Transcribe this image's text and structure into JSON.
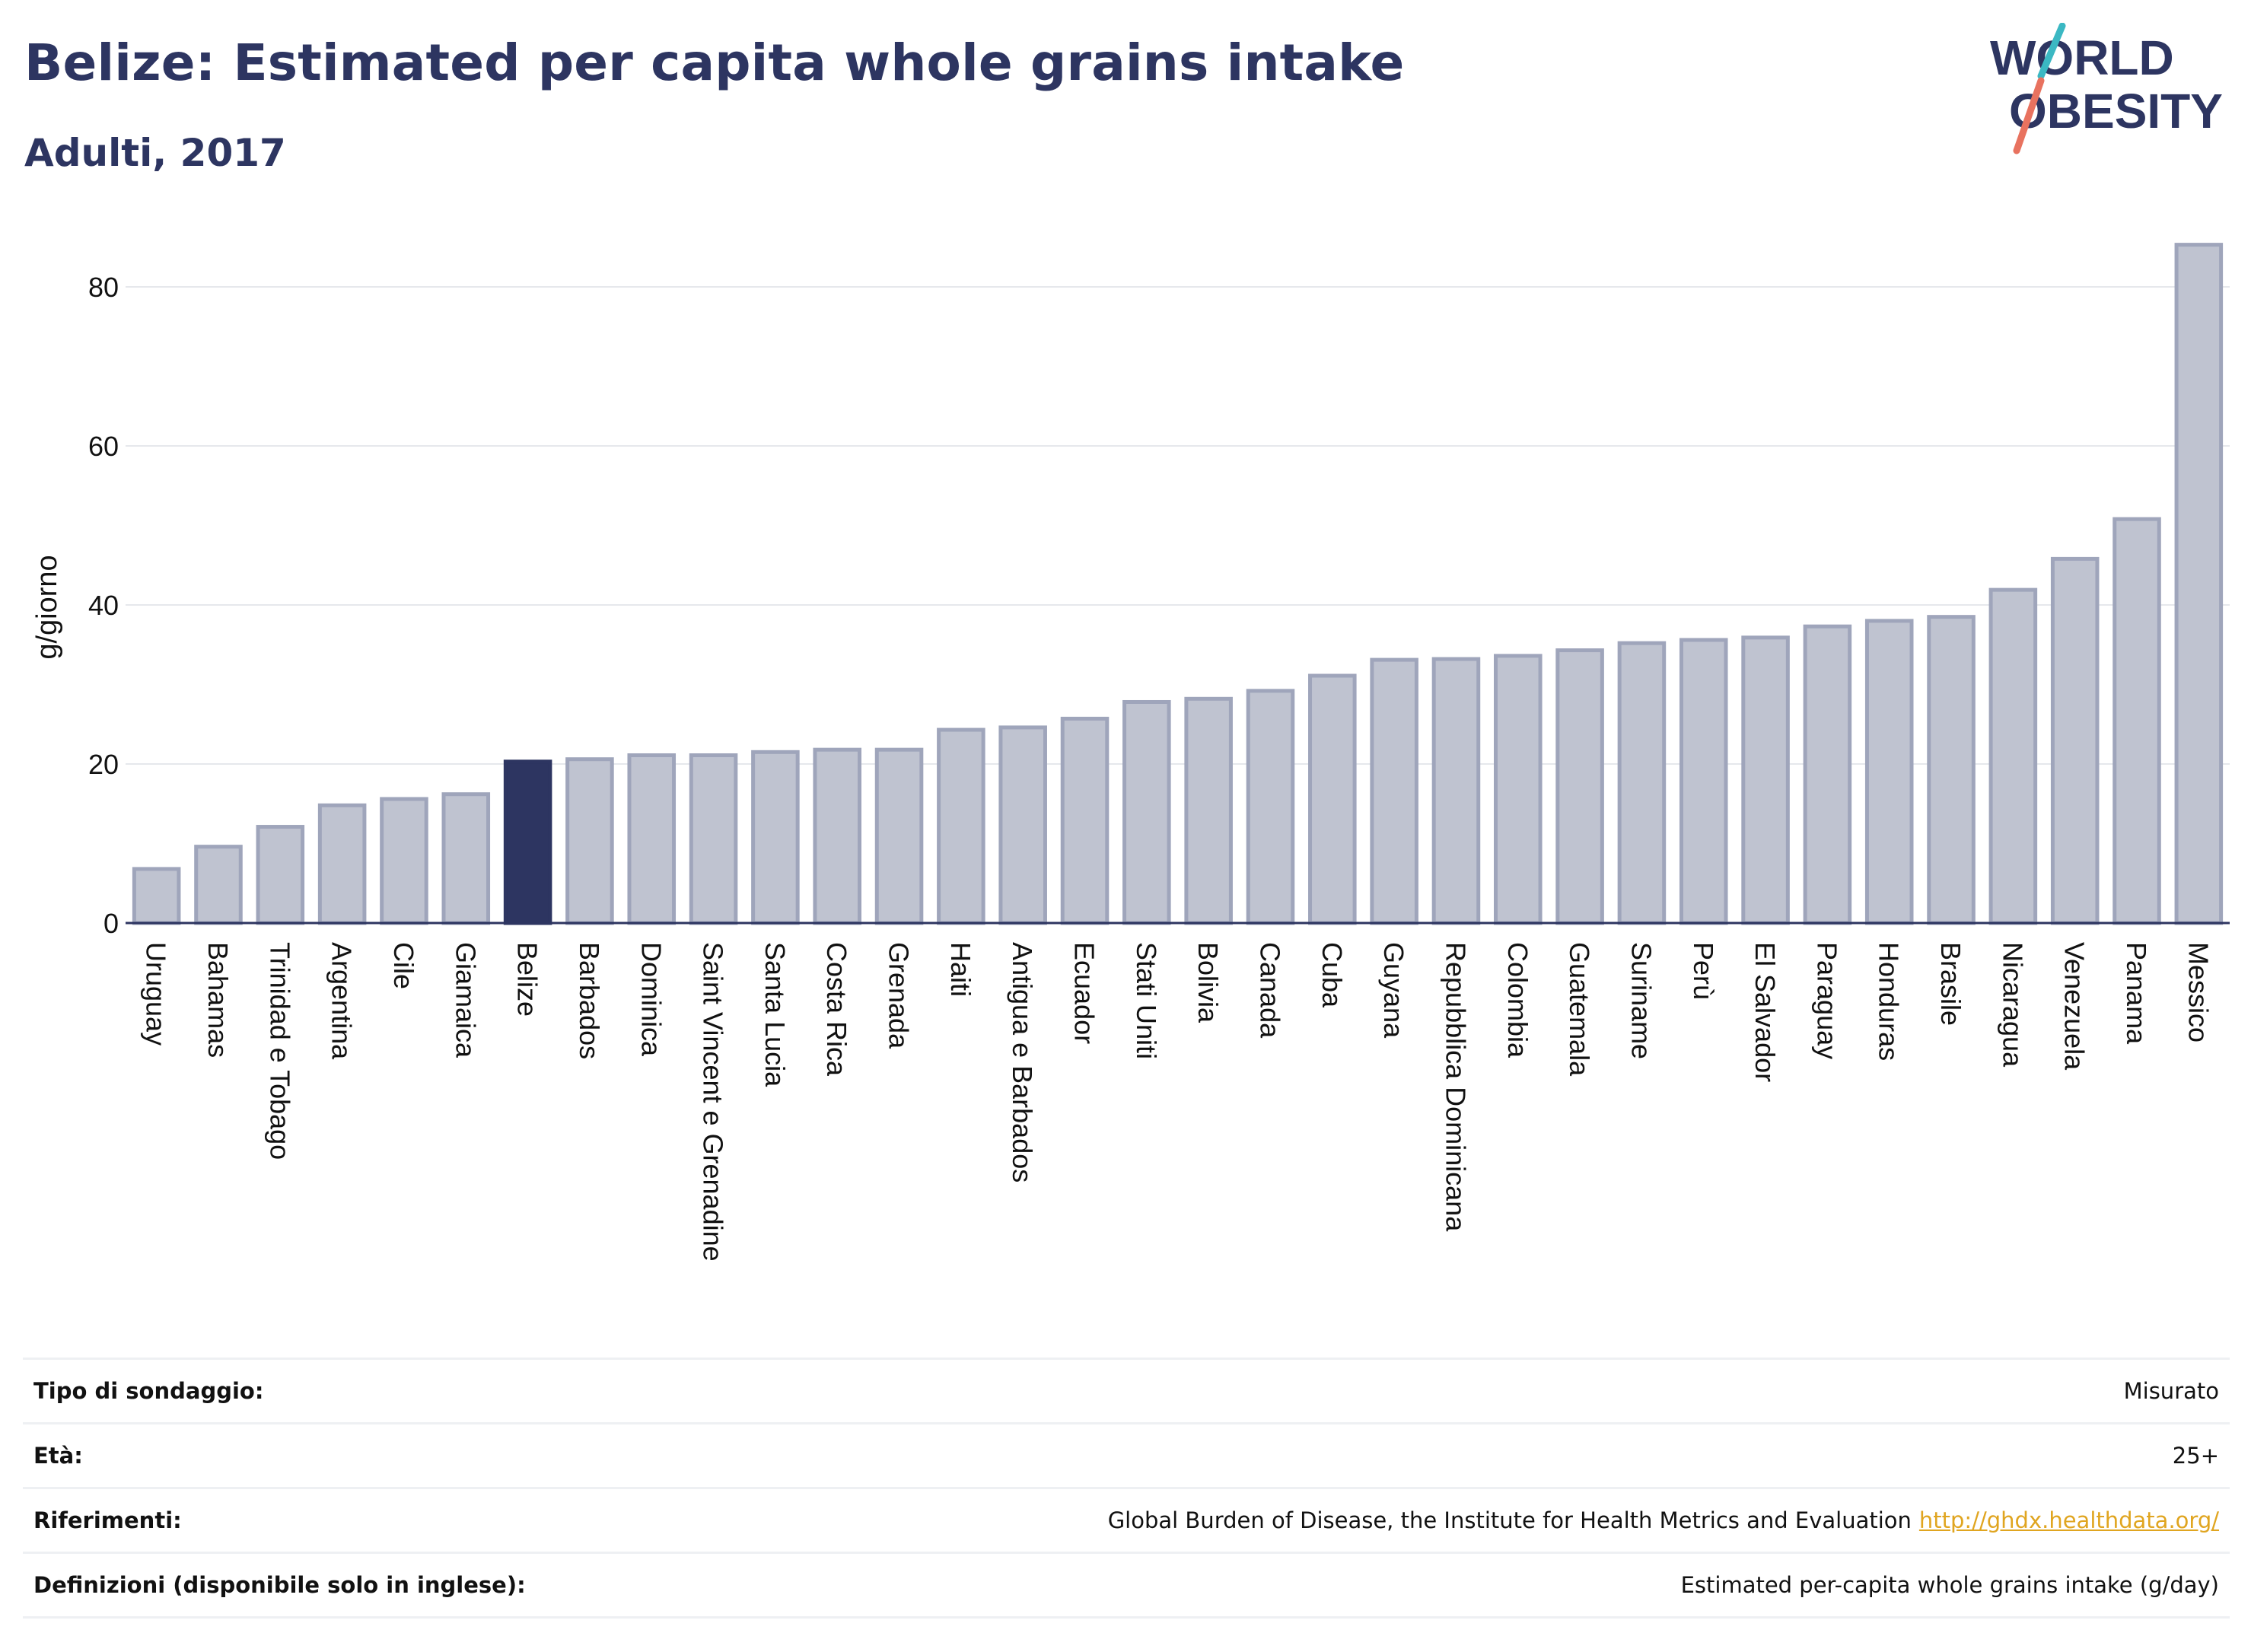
{
  "title": "Belize: Estimated per capita whole grains intake",
  "subtitle": "Adulti, 2017",
  "logo": {
    "line1": "WORLD",
    "line2": "OBESITY"
  },
  "colors": {
    "highlight": "#2d3561",
    "bar": "#bfc3d0",
    "bar_edge": "#9fa5bb",
    "text": "#2d3561",
    "link": "#e0a520",
    "logo_teal": "#3bb8c3",
    "logo_coral": "#e8725f"
  },
  "chart_data": {
    "type": "bar",
    "ylabel": "g/giorno",
    "ylim": [
      0,
      85.5
    ],
    "yticks": [
      0,
      20,
      40,
      60,
      80
    ],
    "highlight": "Belize",
    "categories": [
      "Uruguay",
      "Bahamas",
      "Trinidad e Tobago",
      "Argentina",
      "Cile",
      "Giamaica",
      "Belize",
      "Barbados",
      "Dominica",
      "Saint Vincent e Grenadine",
      "Santa Lucia",
      "Costa Rica",
      "Grenada",
      "Haiti",
      "Antigua e Barbados",
      "Ecuador",
      "Stati Uniti",
      "Bolivia",
      "Canada",
      "Cuba",
      "Guyana",
      "Repubblica Dominicana",
      "Colombia",
      "Guatemala",
      "Suriname",
      "Perù",
      "El Salvador",
      "Paraguay",
      "Honduras",
      "Brasile",
      "Nicaragua",
      "Venezuela",
      "Panama",
      "Messico"
    ],
    "values": [
      6.8,
      9.6,
      12.1,
      14.8,
      15.6,
      16.2,
      20.3,
      20.6,
      21.1,
      21.1,
      21.5,
      21.8,
      21.8,
      24.3,
      24.6,
      25.7,
      27.8,
      28.2,
      29.2,
      31.1,
      33.1,
      33.2,
      33.6,
      34.3,
      35.2,
      35.6,
      35.9,
      37.3,
      38.0,
      38.5,
      41.9,
      45.8,
      50.8,
      85.3
    ]
  },
  "meta": [
    {
      "label": "Tipo di sondaggio:",
      "value": "Misurato"
    },
    {
      "label": "Età:",
      "value": "25+"
    },
    {
      "label": "Riferimenti:",
      "value": "Global Burden of Disease, the Institute for Health Metrics and Evaluation",
      "link": "http://ghdx.healthdata.org/"
    },
    {
      "label": "Definizioni (disponibile solo in inglese):",
      "value": "Estimated per-capita whole grains intake (g/day)"
    }
  ]
}
